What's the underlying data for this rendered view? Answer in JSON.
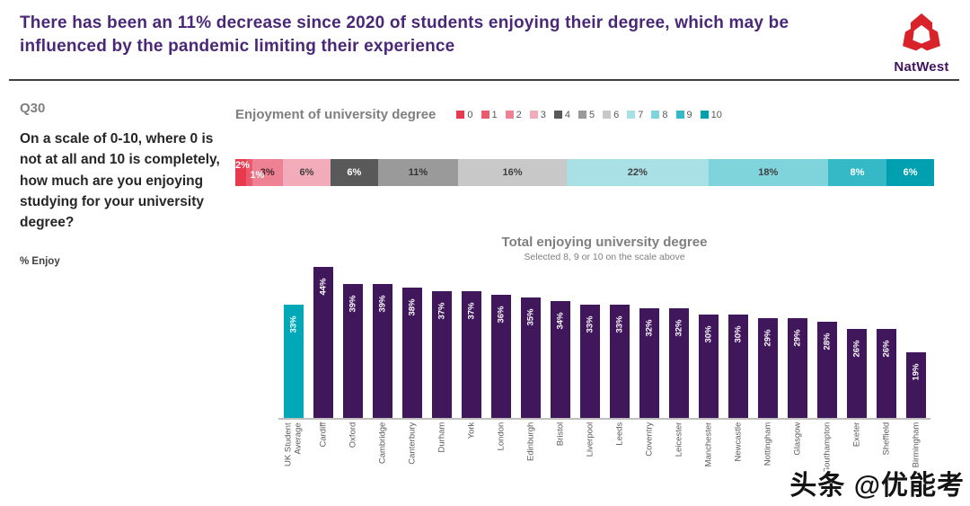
{
  "header": {
    "title": "There has been an 11% decrease since 2020 of students enjoying their degree, which may be influenced by the pandemic limiting their experience",
    "brand_name": "NatWest"
  },
  "sidebar": {
    "question_id": "Q30",
    "question": "On a scale of 0-10, where 0 is not at all and 10 is completely, how much are you enjoying studying for your university degree?",
    "metric_label": "% Enjoy"
  },
  "watermark": "头条 @优能考",
  "colors": {
    "headline_purple": "#4a2878",
    "brand_red": "#d8232a",
    "bar_purple": "#41175c",
    "bar_teal": "#00a8b8",
    "heading_gray": "#7f7f7f",
    "axis_gray": "#bfbfbf"
  },
  "chart_data": [
    {
      "type": "stacked-bar",
      "title": "Enjoyment of university degree",
      "orientation": "horizontal",
      "legend_position": "top-right",
      "segments": [
        {
          "label": "0",
          "value": 2,
          "color": "#e8394e",
          "text_color": "#ffffff",
          "label_pos": "high",
          "data_label": "2%"
        },
        {
          "label": "1",
          "value": 1,
          "color": "#ea5a6c",
          "text_color": "#ffffff",
          "label_pos": "low",
          "data_label": "1%"
        },
        {
          "label": "2",
          "value": 3,
          "color": "#ee8294",
          "text_color": "#47262c",
          "label_pos": "center",
          "data_label": "3%"
        },
        {
          "label": "3",
          "value": 6,
          "color": "#f2abb8",
          "text_color": "#404040",
          "label_pos": "center",
          "data_label": "6%"
        },
        {
          "label": "4",
          "value": 6,
          "color": "#595959",
          "text_color": "#ffffff",
          "label_pos": "center",
          "data_label": "6%"
        },
        {
          "label": "5",
          "value": 11,
          "color": "#9a9a9a",
          "text_color": "#333333",
          "label_pos": "center",
          "data_label": "11%"
        },
        {
          "label": "6",
          "value": 16,
          "color": "#c8c8c8",
          "text_color": "#404040",
          "label_pos": "center",
          "data_label": "16%"
        },
        {
          "label": "7",
          "value": 22,
          "color": "#a9e0e5",
          "text_color": "#404040",
          "label_pos": "center",
          "data_label": "22%"
        },
        {
          "label": "8",
          "value": 18,
          "color": "#7fd4db",
          "text_color": "#404040",
          "label_pos": "center",
          "data_label": "18%"
        },
        {
          "label": "9",
          "value": 8,
          "color": "#35b9c6",
          "text_color": "#ffffff",
          "label_pos": "center",
          "data_label": "8%"
        },
        {
          "label": "10",
          "value": 6,
          "color": "#00a0b0",
          "text_color": "#ffffff",
          "label_pos": "center",
          "data_label": "6%"
        }
      ]
    },
    {
      "type": "bar",
      "title": "Total enjoying university degree",
      "subtitle": "Selected 8, 9 or 10 on the scale above",
      "ylabel": "% Enjoy",
      "ylim": [
        0,
        44
      ],
      "grid": false,
      "highlight_index": 0,
      "highlight_color": "#00a8b8",
      "bar_color": "#41175c",
      "categories": [
        "UK Student Average",
        "Cardiff",
        "Oxford",
        "Cambridge",
        "Canterbury",
        "Durham",
        "York",
        "London",
        "Edinburgh",
        "Bristol",
        "Liverpool",
        "Leeds",
        "Coventry",
        "Leicester",
        "Manchester",
        "Newcastle",
        "Nottingham",
        "Glasgow",
        "Southampton",
        "Exeter",
        "Sheffield",
        "Birmingham"
      ],
      "values": [
        33,
        44,
        39,
        39,
        38,
        37,
        37,
        36,
        35,
        34,
        33,
        33,
        32,
        32,
        30,
        30,
        29,
        29,
        28,
        26,
        26,
        19
      ],
      "data_labels": [
        "33%",
        "44%",
        "39%",
        "39%",
        "38%",
        "37%",
        "37%",
        "36%",
        "35%",
        "34%",
        "33%",
        "33%",
        "32%",
        "32%",
        "30%",
        "30%",
        "29%",
        "29%",
        "28%",
        "26%",
        "26%",
        "19%"
      ]
    }
  ]
}
